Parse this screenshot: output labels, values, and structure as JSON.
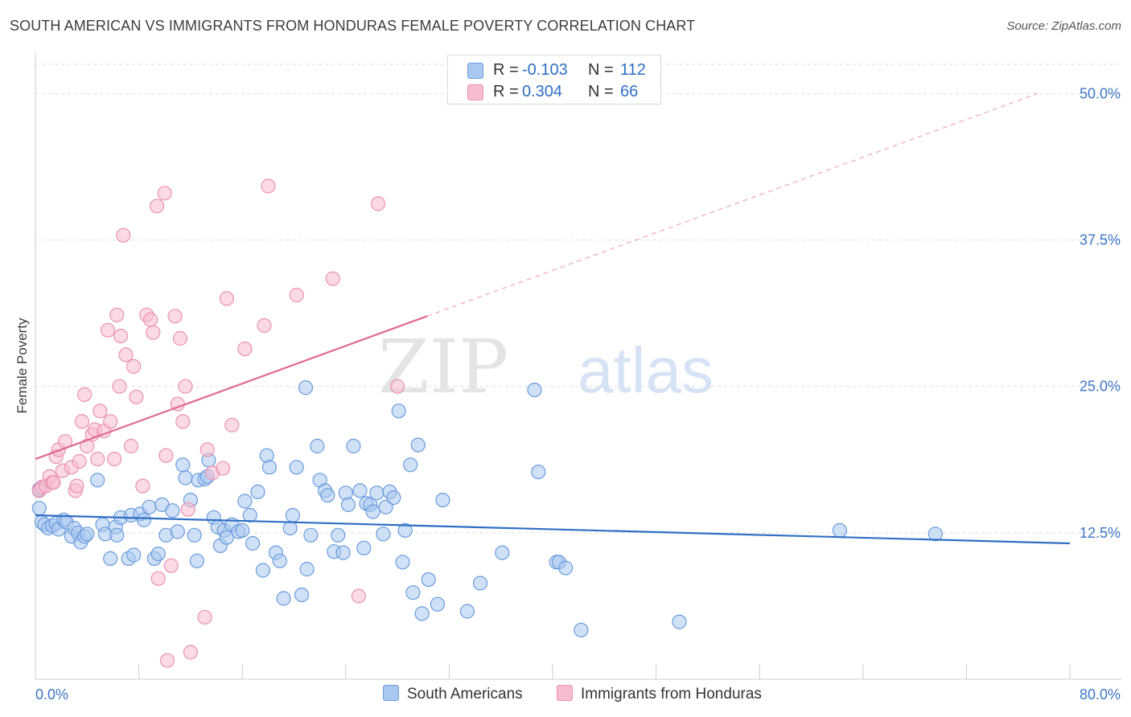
{
  "header": {
    "title": "SOUTH AMERICAN VS IMMIGRANTS FROM HONDURAS FEMALE POVERTY CORRELATION CHART",
    "source": "Source: ZipAtlas.com"
  },
  "watermark": {
    "part1": "ZIP",
    "part2": "atlas"
  },
  "legend": {
    "r_label": "R =",
    "n_label": "N =",
    "rows": [
      {
        "r": "-0.103",
        "n": "112"
      },
      {
        "r": "0.304",
        "n": "66"
      }
    ]
  },
  "colors": {
    "blue_fill": "#a9c8f0",
    "blue_stroke": "#6a9bdc",
    "blue_line": "#2f6fc5",
    "pink_fill": "#f7bccf",
    "pink_stroke": "#e992b0",
    "pink_line": "#e06a92",
    "grid": "#dddddd",
    "axis_text": "#3d75c8"
  },
  "chart_data": {
    "type": "scatter",
    "title": "SOUTH AMERICAN VS IMMIGRANTS FROM HONDURAS FEMALE POVERTY CORRELATION CHART",
    "xlabel": "",
    "ylabel": "Female Poverty",
    "xlim": [
      0,
      80
    ],
    "ylim": [
      0,
      52.5
    ],
    "x_tick_labels": [
      "0.0%",
      "80.0%"
    ],
    "y_ticks": [
      12.5,
      25.0,
      37.5,
      50.0
    ],
    "y_tick_labels": [
      "12.5%",
      "25.0%",
      "37.5%",
      "50.0%"
    ],
    "grid": true,
    "legend_position": "top-center",
    "series": [
      {
        "name": "South Americans",
        "r": -0.103,
        "n": 112,
        "trend": {
          "x": [
            0,
            80
          ],
          "y": [
            14.0,
            11.6
          ]
        },
        "points": [
          [
            0.3,
            14.6
          ],
          [
            0.3,
            16.2
          ],
          [
            0.5,
            13.4
          ],
          [
            0.7,
            13.2
          ],
          [
            1.0,
            12.9
          ],
          [
            1.3,
            13.1
          ],
          [
            1.6,
            13.3
          ],
          [
            1.8,
            12.8
          ],
          [
            2.2,
            13.6
          ],
          [
            2.4,
            13.4
          ],
          [
            2.8,
            12.2
          ],
          [
            3.0,
            12.9
          ],
          [
            3.3,
            12.5
          ],
          [
            3.5,
            11.7
          ],
          [
            3.8,
            12.2
          ],
          [
            4.0,
            12.4
          ],
          [
            4.8,
            17.0
          ],
          [
            5.2,
            13.2
          ],
          [
            5.4,
            12.4
          ],
          [
            5.8,
            10.3
          ],
          [
            6.2,
            13.0
          ],
          [
            6.3,
            12.3
          ],
          [
            6.6,
            13.8
          ],
          [
            7.2,
            10.3
          ],
          [
            7.4,
            14.0
          ],
          [
            7.6,
            10.6
          ],
          [
            8.1,
            14.1
          ],
          [
            8.4,
            13.6
          ],
          [
            8.8,
            14.7
          ],
          [
            9.2,
            10.3
          ],
          [
            9.5,
            10.7
          ],
          [
            9.8,
            14.9
          ],
          [
            10.1,
            12.3
          ],
          [
            10.6,
            14.4
          ],
          [
            11.0,
            12.6
          ],
          [
            11.4,
            18.3
          ],
          [
            11.6,
            17.2
          ],
          [
            12.0,
            15.3
          ],
          [
            12.3,
            12.3
          ],
          [
            12.5,
            10.1
          ],
          [
            12.6,
            17.0
          ],
          [
            13.1,
            17.1
          ],
          [
            13.3,
            17.3
          ],
          [
            13.4,
            18.7
          ],
          [
            13.8,
            13.8
          ],
          [
            14.1,
            13.0
          ],
          [
            14.3,
            11.4
          ],
          [
            14.6,
            12.7
          ],
          [
            14.8,
            12.1
          ],
          [
            15.2,
            13.2
          ],
          [
            15.7,
            12.6
          ],
          [
            16.0,
            12.7
          ],
          [
            16.2,
            15.2
          ],
          [
            16.6,
            14.0
          ],
          [
            16.8,
            11.6
          ],
          [
            17.2,
            16.0
          ],
          [
            17.6,
            9.3
          ],
          [
            17.9,
            19.1
          ],
          [
            18.1,
            18.1
          ],
          [
            18.6,
            10.8
          ],
          [
            18.9,
            10.1
          ],
          [
            19.2,
            6.9
          ],
          [
            19.7,
            12.9
          ],
          [
            19.9,
            14.0
          ],
          [
            20.2,
            18.1
          ],
          [
            20.6,
            7.2
          ],
          [
            20.9,
            24.9
          ],
          [
            21.0,
            9.4
          ],
          [
            21.3,
            12.3
          ],
          [
            21.8,
            19.9
          ],
          [
            22.0,
            17.0
          ],
          [
            22.4,
            16.1
          ],
          [
            22.6,
            15.7
          ],
          [
            23.1,
            10.9
          ],
          [
            23.4,
            12.3
          ],
          [
            23.8,
            10.8
          ],
          [
            24.0,
            15.9
          ],
          [
            24.2,
            14.9
          ],
          [
            24.6,
            19.9
          ],
          [
            25.1,
            16.1
          ],
          [
            25.4,
            11.2
          ],
          [
            25.6,
            15.0
          ],
          [
            25.9,
            14.9
          ],
          [
            26.1,
            14.3
          ],
          [
            26.4,
            15.9
          ],
          [
            26.9,
            12.4
          ],
          [
            27.1,
            14.7
          ],
          [
            27.4,
            16.0
          ],
          [
            27.7,
            15.5
          ],
          [
            28.1,
            22.9
          ],
          [
            28.4,
            10.0
          ],
          [
            28.6,
            12.7
          ],
          [
            29.0,
            18.3
          ],
          [
            29.2,
            7.4
          ],
          [
            29.6,
            20.0
          ],
          [
            29.9,
            5.6
          ],
          [
            30.4,
            8.5
          ],
          [
            31.1,
            6.4
          ],
          [
            31.5,
            15.3
          ],
          [
            33.4,
            5.8
          ],
          [
            34.4,
            8.2
          ],
          [
            36.1,
            10.8
          ],
          [
            38.6,
            24.7
          ],
          [
            38.9,
            17.7
          ],
          [
            40.3,
            10.0
          ],
          [
            40.5,
            10.0
          ],
          [
            41.0,
            9.5
          ],
          [
            42.2,
            4.2
          ],
          [
            49.8,
            4.9
          ],
          [
            62.2,
            12.7
          ],
          [
            69.6,
            12.4
          ]
        ]
      },
      {
        "name": "Immigrants from Honduras",
        "r": 0.304,
        "n": 66,
        "trend": {
          "x": [
            0,
            30.3
          ],
          "y": [
            18.8,
            31.0
          ]
        },
        "trend_extension": {
          "x": [
            30.3,
            77.5
          ],
          "y": [
            31.0,
            50.0
          ]
        },
        "points": [
          [
            0.3,
            16.1
          ],
          [
            0.5,
            16.4
          ],
          [
            0.8,
            16.5
          ],
          [
            1.1,
            17.3
          ],
          [
            1.3,
            16.8
          ],
          [
            1.4,
            16.8
          ],
          [
            1.6,
            19.0
          ],
          [
            1.8,
            19.6
          ],
          [
            2.1,
            17.8
          ],
          [
            2.3,
            20.3
          ],
          [
            2.8,
            18.1
          ],
          [
            3.1,
            16.1
          ],
          [
            3.2,
            16.5
          ],
          [
            3.4,
            18.6
          ],
          [
            3.6,
            22.0
          ],
          [
            3.8,
            24.3
          ],
          [
            4.0,
            19.9
          ],
          [
            4.4,
            20.9
          ],
          [
            4.6,
            21.3
          ],
          [
            4.8,
            18.8
          ],
          [
            5.0,
            22.9
          ],
          [
            5.3,
            21.2
          ],
          [
            5.6,
            29.8
          ],
          [
            5.8,
            22.0
          ],
          [
            6.1,
            18.8
          ],
          [
            6.3,
            31.1
          ],
          [
            6.5,
            25.0
          ],
          [
            6.6,
            29.3
          ],
          [
            6.8,
            37.9
          ],
          [
            7.0,
            27.7
          ],
          [
            7.4,
            19.9
          ],
          [
            7.6,
            26.7
          ],
          [
            7.8,
            24.1
          ],
          [
            8.3,
            16.5
          ],
          [
            8.6,
            31.1
          ],
          [
            8.9,
            30.7
          ],
          [
            9.1,
            29.6
          ],
          [
            9.4,
            40.4
          ],
          [
            9.5,
            8.6
          ],
          [
            10.0,
            41.5
          ],
          [
            10.1,
            19.1
          ],
          [
            10.2,
            1.6
          ],
          [
            10.5,
            9.7
          ],
          [
            10.8,
            31.0
          ],
          [
            11.0,
            23.5
          ],
          [
            11.2,
            29.1
          ],
          [
            11.4,
            22.0
          ],
          [
            11.6,
            25.0
          ],
          [
            11.8,
            14.5
          ],
          [
            12.0,
            2.3
          ],
          [
            13.1,
            5.3
          ],
          [
            13.3,
            19.6
          ],
          [
            13.7,
            17.6
          ],
          [
            14.5,
            18.0
          ],
          [
            14.8,
            32.5
          ],
          [
            15.2,
            21.7
          ],
          [
            16.2,
            28.2
          ],
          [
            17.7,
            30.2
          ],
          [
            18.0,
            42.1
          ],
          [
            20.2,
            32.8
          ],
          [
            23.0,
            34.2
          ],
          [
            25.0,
            7.1
          ],
          [
            26.5,
            40.6
          ],
          [
            28.0,
            25.0
          ]
        ]
      }
    ]
  }
}
